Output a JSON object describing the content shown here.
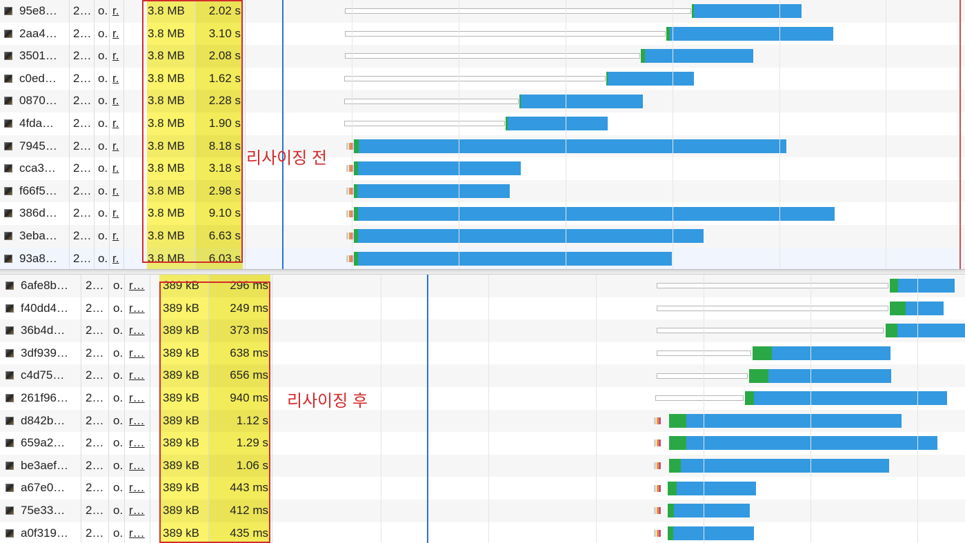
{
  "colors": {
    "highlight": "#fbf46a",
    "annotation_red": "#d32a2a",
    "receive_bar": "#3399e0",
    "wait_green": "#2aa845",
    "marker_blue": "#2b6fd8"
  },
  "top": {
    "annotation": "리사이징 전",
    "rows": [
      {
        "name": "95e8…",
        "status": "2…",
        "type": "o.",
        "initiator": "r.",
        "size": "3.8 MB",
        "time": "2.02 s",
        "wait": [
          500,
          1002
        ],
        "green": [
          1003,
          1006
        ],
        "blue": [
          1006,
          1162
        ]
      },
      {
        "name": "2aa4…",
        "status": "2…",
        "type": "o.",
        "initiator": "r.",
        "size": "3.8 MB",
        "time": "3.10 s",
        "wait": [
          500,
          965
        ],
        "green": [
          966,
          971
        ],
        "blue": [
          971,
          1208
        ]
      },
      {
        "name": "3501…",
        "status": "2…",
        "type": "o.",
        "initiator": "r.",
        "size": "3.8 MB",
        "time": "2.08 s",
        "wait": [
          500,
          928
        ],
        "green": [
          929,
          935
        ],
        "blue": [
          935,
          1092
        ]
      },
      {
        "name": "c0ed…",
        "status": "2…",
        "type": "o.",
        "initiator": "r.",
        "size": "3.8 MB",
        "time": "1.62 s",
        "wait": [
          499,
          878
        ],
        "green": [
          879,
          881
        ],
        "blue": [
          881,
          1006
        ]
      },
      {
        "name": "0870…",
        "status": "2…",
        "type": "o.",
        "initiator": "r.",
        "size": "3.8 MB",
        "time": "2.28 s",
        "wait": [
          499,
          752
        ],
        "green": [
          753,
          755
        ],
        "blue": [
          755,
          932
        ]
      },
      {
        "name": "4fda…",
        "status": "2…",
        "type": "o.",
        "initiator": "r.",
        "size": "3.8 MB",
        "time": "1.90 s",
        "wait": [
          499,
          732
        ],
        "green": [
          733,
          736
        ],
        "blue": [
          736,
          881
        ]
      },
      {
        "name": "7945…",
        "status": "2…",
        "type": "o.",
        "initiator": "r.",
        "size": "3.8 MB",
        "time": "8.18 s",
        "wait": null,
        "green": [
          513,
          520
        ],
        "blue": [
          520,
          1140
        ]
      },
      {
        "name": "cca3…",
        "status": "2…",
        "type": "o.",
        "initiator": "r.",
        "size": "3.8 MB",
        "time": "3.18 s",
        "wait": null,
        "green": [
          513,
          519
        ],
        "blue": [
          519,
          755
        ]
      },
      {
        "name": "f66f5…",
        "status": "2…",
        "type": "o.",
        "initiator": "r.",
        "size": "3.8 MB",
        "time": "2.98 s",
        "wait": null,
        "green": [
          513,
          518
        ],
        "blue": [
          518,
          739
        ]
      },
      {
        "name": "386d…",
        "status": "2…",
        "type": "o.",
        "initiator": "r.",
        "size": "3.8 MB",
        "time": "9.10 s",
        "wait": null,
        "green": [
          513,
          519
        ],
        "blue": [
          519,
          1210
        ]
      },
      {
        "name": "3eba…",
        "status": "2…",
        "type": "o.",
        "initiator": "r.",
        "size": "3.8 MB",
        "time": "6.63 s",
        "wait": null,
        "green": [
          513,
          519
        ],
        "blue": [
          519,
          1020
        ]
      },
      {
        "name": "93a8…",
        "status": "2…",
        "type": "o.",
        "initiator": "r.",
        "size": "3.8 MB",
        "time": "6.03 s",
        "wait": null,
        "green": [
          513,
          519
        ],
        "blue": [
          519,
          974
        ]
      }
    ]
  },
  "bottom": {
    "annotation": "리사이징 후",
    "rows": [
      {
        "name": "6afe8b…",
        "status": "2…",
        "type": "o.",
        "initiator": "r…",
        "size": "389 kB",
        "time": "296 ms",
        "wait": [
          952,
          1288
        ],
        "green": [
          1290,
          1302
        ],
        "blue": [
          1302,
          1384
        ]
      },
      {
        "name": "f40dd4…",
        "status": "2…",
        "type": "o.",
        "initiator": "r…",
        "size": "389 kB",
        "time": "249 ms",
        "wait": [
          952,
          1288
        ],
        "green": [
          1290,
          1313
        ],
        "blue": [
          1313,
          1368
        ]
      },
      {
        "name": "36b4d…",
        "status": "2…",
        "type": "o.",
        "initiator": "r…",
        "size": "389 kB",
        "time": "373 ms",
        "wait": [
          952,
          1281
        ],
        "green": [
          1284,
          1301
        ],
        "blue": [
          1301,
          1399
        ]
      },
      {
        "name": "3df939…",
        "status": "2…",
        "type": "o.",
        "initiator": "r…",
        "size": "389 kB",
        "time": "638 ms",
        "wait": [
          952,
          1089
        ],
        "green": [
          1091,
          1119
        ],
        "blue": [
          1119,
          1291
        ]
      },
      {
        "name": "c4d75…",
        "status": "2…",
        "type": "o.",
        "initiator": "r…",
        "size": "389 kB",
        "time": "656 ms",
        "wait": [
          952,
          1084
        ],
        "green": [
          1086,
          1114
        ],
        "blue": [
          1114,
          1292
        ]
      },
      {
        "name": "261f96…",
        "status": "2…",
        "type": "o.",
        "initiator": "r…",
        "size": "389 kB",
        "time": "940 ms",
        "wait": [
          950,
          1078
        ],
        "green": [
          1080,
          1093
        ],
        "blue": [
          1093,
          1373
        ]
      },
      {
        "name": "d842b…",
        "status": "2…",
        "type": "o.",
        "initiator": "r…",
        "size": "389 kB",
        "time": "1.12 s",
        "wait": null,
        "green": [
          970,
          995
        ],
        "blue": [
          995,
          1307
        ]
      },
      {
        "name": "659a2…",
        "status": "2…",
        "type": "o.",
        "initiator": "r…",
        "size": "389 kB",
        "time": "1.29 s",
        "wait": null,
        "green": [
          970,
          995
        ],
        "blue": [
          995,
          1359
        ]
      },
      {
        "name": "be3aef…",
        "status": "2…",
        "type": "o.",
        "initiator": "r…",
        "size": "389 kB",
        "time": "1.06 s",
        "wait": null,
        "green": [
          970,
          987
        ],
        "blue": [
          987,
          1289
        ]
      },
      {
        "name": "a67e0…",
        "status": "2…",
        "type": "o.",
        "initiator": "r…",
        "size": "389 kB",
        "time": "443 ms",
        "wait": null,
        "green": [
          968,
          981
        ],
        "blue": [
          981,
          1096
        ]
      },
      {
        "name": "75e33…",
        "status": "2…",
        "type": "o.",
        "initiator": "r…",
        "size": "389 kB",
        "time": "412 ms",
        "wait": null,
        "green": [
          968,
          977
        ],
        "blue": [
          977,
          1087
        ]
      },
      {
        "name": "a0f319…",
        "status": "2…",
        "type": "o.",
        "initiator": "r…",
        "size": "389 kB",
        "time": "435 ms",
        "wait": null,
        "green": [
          968,
          976
        ],
        "blue": [
          976,
          1093
        ]
      }
    ]
  }
}
